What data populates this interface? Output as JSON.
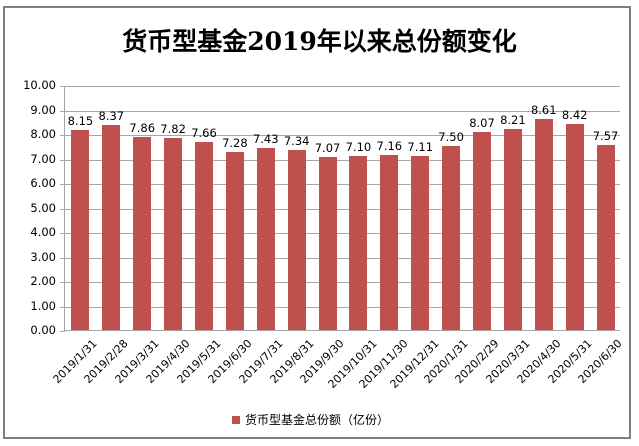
{
  "chart_data": {
    "type": "bar",
    "title": "货币型基金2019年以来总份额变化",
    "xlabel": "",
    "ylabel": "",
    "ylim": [
      0,
      10
    ],
    "yticks": [
      "0.00",
      "1.00",
      "2.00",
      "3.00",
      "4.00",
      "5.00",
      "6.00",
      "7.00",
      "8.00",
      "9.00",
      "10.00"
    ],
    "grid": true,
    "legend_position": "bottom",
    "categories": [
      "2019/1/31",
      "2019/2/28",
      "2019/3/31",
      "2019/4/30",
      "2019/5/31",
      "2019/6/30",
      "2019/7/31",
      "2019/8/31",
      "2019/9/30",
      "2019/10/31",
      "2019/11/30",
      "2019/12/31",
      "2020/1/31",
      "2020/2/29",
      "2020/3/31",
      "2020/4/30",
      "2020/5/31",
      "2020/6/30"
    ],
    "series": [
      {
        "name": "货币型基金总份额（亿份）",
        "color": "#c0504d",
        "values": [
          8.15,
          8.37,
          7.86,
          7.82,
          7.66,
          7.28,
          7.43,
          7.34,
          7.07,
          7.1,
          7.16,
          7.11,
          7.5,
          8.07,
          8.21,
          8.61,
          8.42,
          7.57
        ],
        "labels": [
          "8.15",
          "8.37",
          "7.86",
          "7.82",
          "7.66",
          "7.28",
          "7.43",
          "7.34",
          "7.07",
          "7.10",
          "7.16",
          "7.11",
          "7.50",
          "8.07",
          "8.21",
          "8.61",
          "8.42",
          "7.57"
        ]
      }
    ]
  },
  "legend": {
    "label": "货币型基金总份额（亿份）",
    "color": "#c0504d"
  },
  "colors": {
    "bar": "#c0504d",
    "grid": "#a6a6a6",
    "frame": "#7f7f7f"
  }
}
